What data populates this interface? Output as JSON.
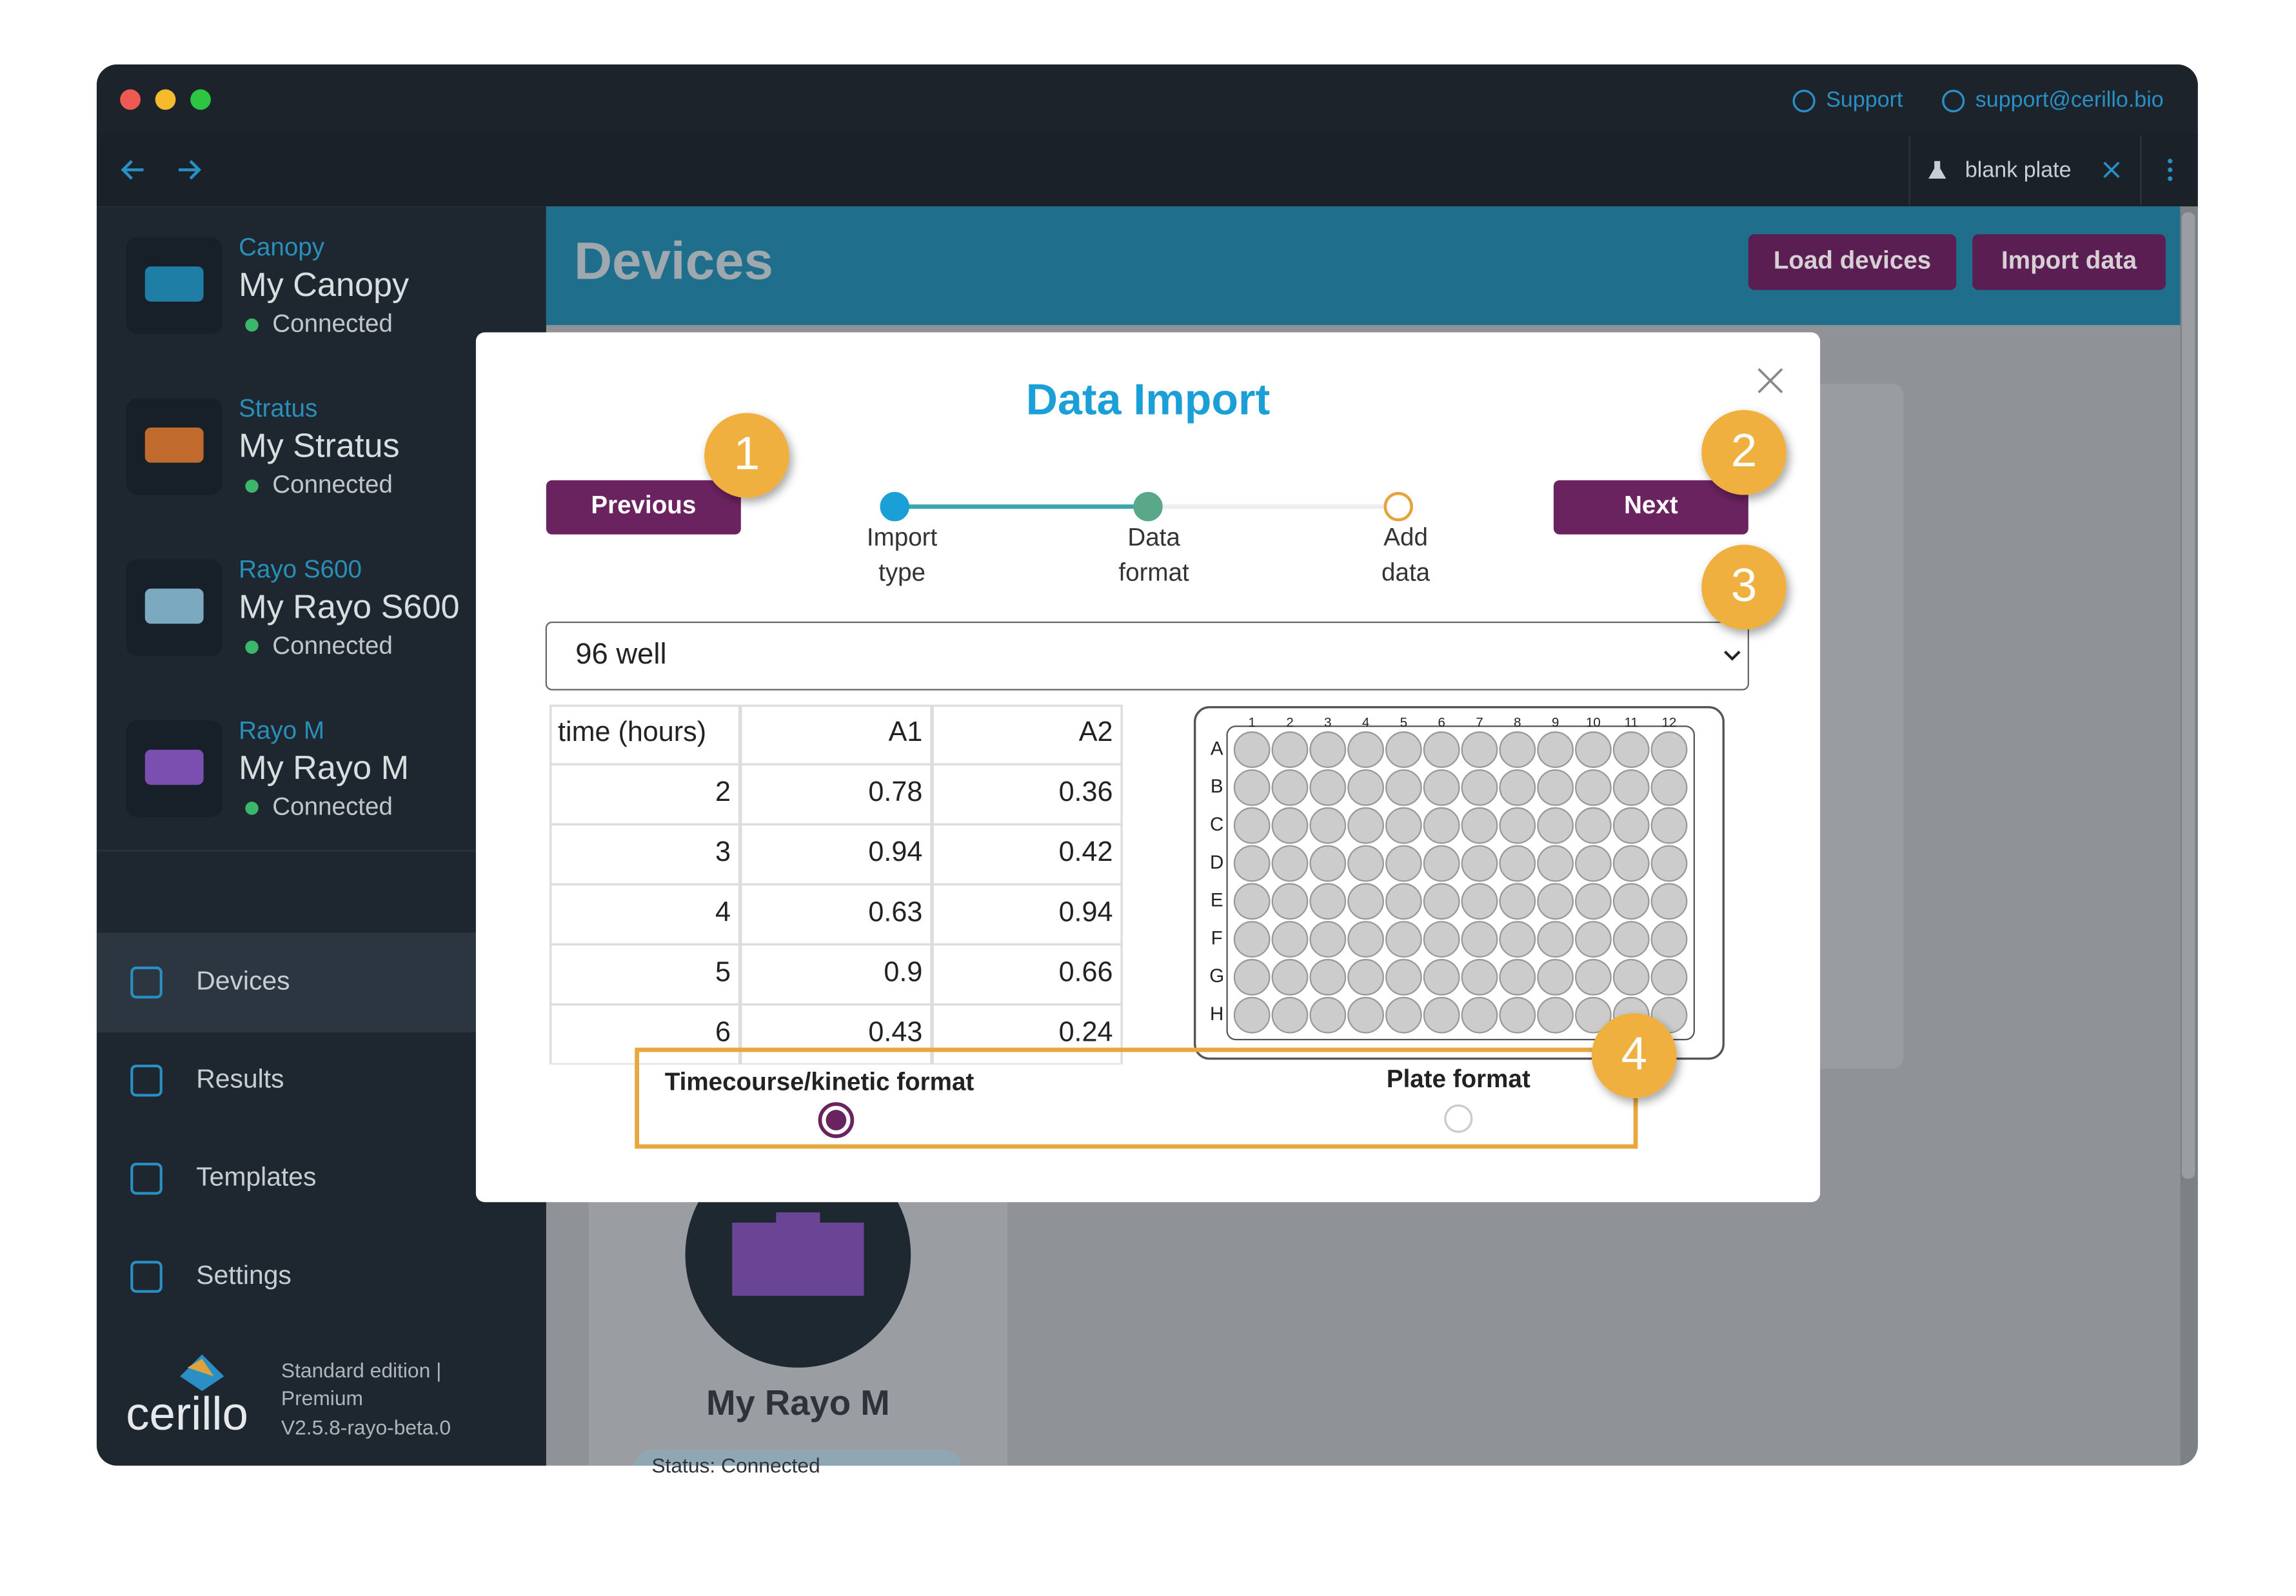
{
  "titlebar": {
    "support": "Support",
    "email": "support@cerillo.bio"
  },
  "tab": {
    "label": "blank plate"
  },
  "sidebar": {
    "devices": [
      {
        "type": "Canopy",
        "name": "My Canopy",
        "status": "Connected"
      },
      {
        "type": "Stratus",
        "name": "My Stratus",
        "status": "Connected"
      },
      {
        "type": "Rayo S600",
        "name": "My Rayo S600",
        "status": "Connected"
      },
      {
        "type": "Rayo M",
        "name": "My Rayo M",
        "status": "Connected"
      }
    ],
    "nav": [
      "Devices",
      "Results",
      "Templates",
      "Settings"
    ],
    "footer": {
      "logo": "cerillo",
      "edition": "Standard edition |",
      "tier": "Premium",
      "version": "V2.5.8-rayo-beta.0"
    }
  },
  "header": {
    "title": "Devices",
    "buttons": [
      "Load devices",
      "Import data"
    ]
  },
  "background_card": {
    "name": "My Rayo M",
    "status": "Status: Connected"
  },
  "modal": {
    "title": "Data Import",
    "previous": "Previous",
    "next": "Next",
    "steps": [
      {
        "lines": [
          "Import",
          "type"
        ]
      },
      {
        "lines": [
          "Data",
          "format"
        ]
      },
      {
        "lines": [
          "Add",
          "data"
        ]
      }
    ],
    "select": "96 well",
    "table": {
      "header": [
        "time (hours)",
        "A1",
        "A2"
      ],
      "rows": [
        [
          2,
          0.78,
          0.36
        ],
        [
          3,
          0.94,
          0.42
        ],
        [
          4,
          0.63,
          0.94
        ],
        [
          5,
          0.9,
          0.66
        ],
        [
          6,
          0.43,
          0.24
        ]
      ]
    },
    "plate": {
      "columns": [
        "1",
        "2",
        "3",
        "4",
        "5",
        "6",
        "7",
        "8",
        "9",
        "10",
        "11",
        "12"
      ],
      "rows": [
        "A",
        "B",
        "C",
        "D",
        "E",
        "F",
        "G",
        "H"
      ]
    },
    "formats": [
      "Timecourse/kinetic format",
      "Plate format"
    ]
  },
  "callouts": [
    "1",
    "2",
    "3",
    "4"
  ]
}
